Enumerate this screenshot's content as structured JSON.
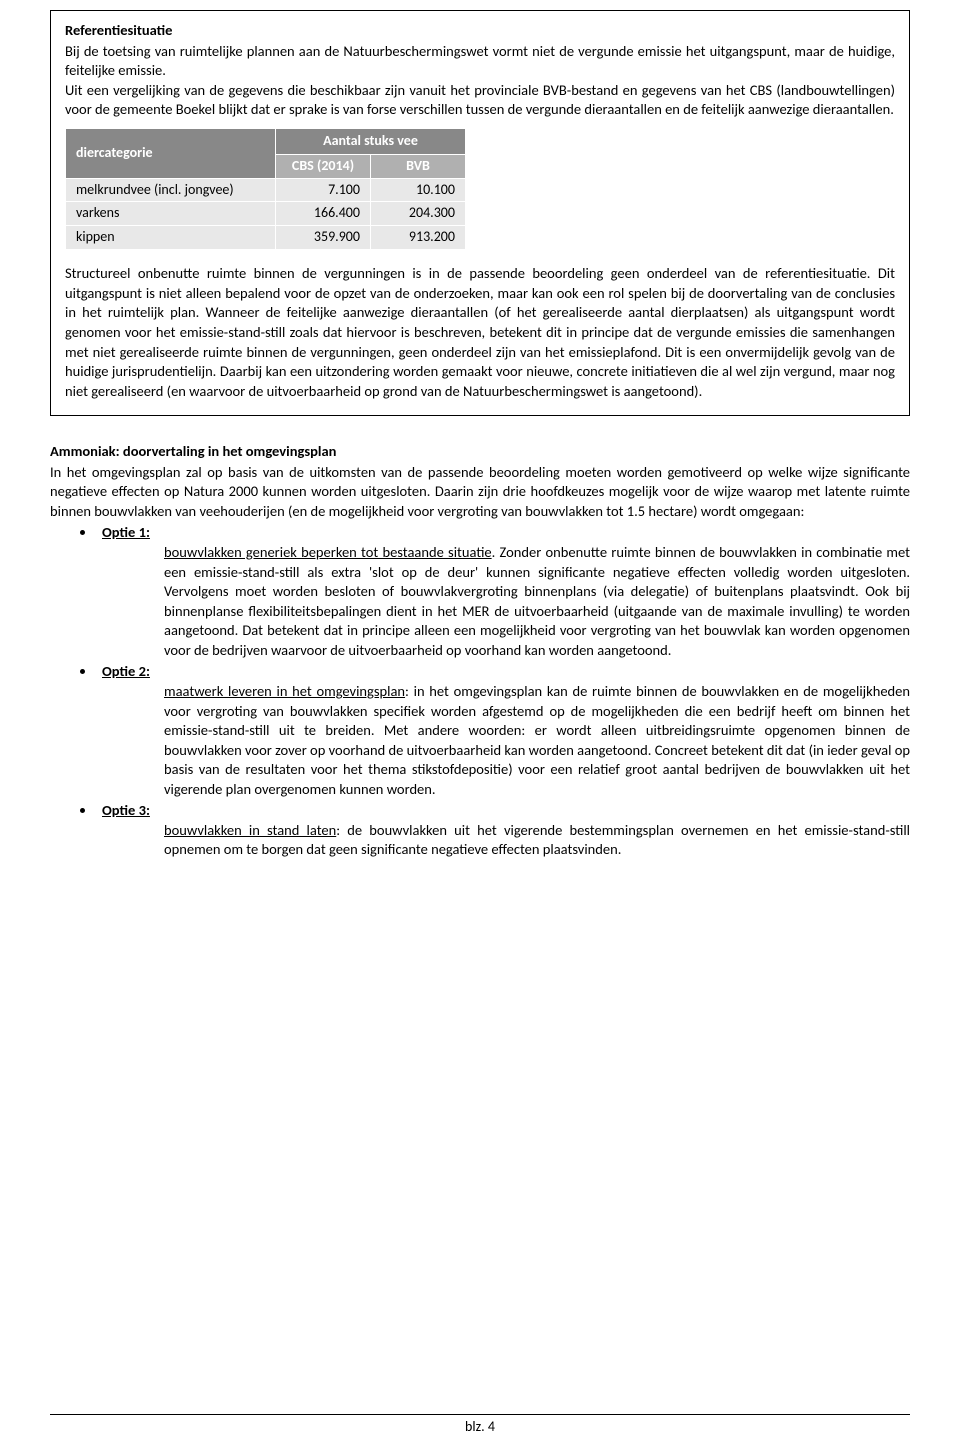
{
  "box": {
    "heading": "Referentiesituatie",
    "intro": "Bij de toetsing van ruimtelijke plannen aan de Natuurbeschermingswet vormt niet de vergunde emissie het uitgangspunt, maar de huidige, feitelijke emissie.",
    "para2": "Uit een vergelijking van de gegevens die beschikbaar zijn vanuit het provinciale BVB-bestand en gegevens van het CBS (landbouwtellingen) voor de gemeente Boekel blijkt dat er sprake is van forse verschillen tussen de vergunde dieraantallen en de feitelijk aanwezige dieraantallen.",
    "table": {
      "col_category": "diercategorie",
      "col_aantal": "Aantal stuks vee",
      "sub_cbs": "CBS (2014)",
      "sub_bvb": "BVB",
      "rows": [
        {
          "label": "melkrundvee (incl. jongvee)",
          "cbs": "7.100",
          "bvb": "10.100"
        },
        {
          "label": "varkens",
          "cbs": "166.400",
          "bvb": "204.300"
        },
        {
          "label": "kippen",
          "cbs": "359.900",
          "bvb": "913.200"
        }
      ]
    },
    "para3": "Structureel onbenutte ruimte binnen de vergunningen is in de passende beoordeling geen onderdeel van de referentiesituatie. Dit uitgangspunt is niet alleen bepalend voor de opzet van de onderzoeken, maar kan ook een rol spelen bij de doorvertaling van de conclusies in het ruimtelijk plan. Wanneer de feitelijke aanwezige dieraantallen (of het gerealiseerde aantal dierplaatsen) als uitgangspunt wordt genomen voor het emissie-stand-still zoals dat hiervoor is beschreven, betekent dit in principe dat de vergunde emissies die samenhangen met niet gerealiseerde ruimte binnen de vergunningen, geen onderdeel zijn van het emissieplafond. Dit is een onvermijdelijk gevolg van de huidige jurisprudentielijn. Daarbij kan een uitzondering worden gemaakt voor nieuwe, concrete  initiatieven die al wel zijn vergund, maar nog niet gerealiseerd (en waarvoor de uitvoerbaarheid op grond van de Natuurbeschermingswet is aangetoond)."
  },
  "section2": {
    "heading": "Ammoniak: doorvertaling in het omgevingsplan",
    "intro": "In het omgevingsplan zal op basis van de uitkomsten van de passende beoordeling moeten worden gemotiveerd op welke wijze significante negatieve effecten op Natura 2000 kunnen worden uitgesloten. Daarin zijn drie hoofdkeuzes mogelijk voor de wijze waarop met latente ruimte binnen bouwvlakken van veehouderijen (en de mogelijkheid voor vergroting van bouwvlakken tot 1.5 hectare) wordt omgegaan:",
    "options": [
      {
        "label": "Optie 1:",
        "lead": "bouwvlakken generiek beperken tot bestaande situatie",
        "rest": ". Zonder onbenutte ruimte binnen de bouwvlakken in combinatie met een emissie-stand-still als extra 'slot op de deur' kunnen significante negatieve effecten volledig worden uitgesloten. Vervolgens moet worden besloten of bouwvlakvergroting binnenplans (via delegatie) of buitenplans plaatsvindt. Ook bij binnenplanse flexibiliteitsbepalingen dient in het MER de uitvoerbaarheid (uitgaande van de maximale invulling) te worden aangetoond. Dat betekent dat in principe alleen een mogelijkheid voor vergroting van het bouwvlak kan worden opgenomen voor de bedrijven waarvoor de uitvoerbaarheid op voorhand kan worden aangetoond."
      },
      {
        "label": "Optie 2:",
        "lead": "maatwerk leveren in het omgevingsplan",
        "rest": ": in het omgevingsplan kan de ruimte binnen de bouwvlakken en de mogelijkheden voor vergroting van bouwvlakken specifiek worden afgestemd op de mogelijkheden die een bedrijf heeft om binnen het emissie-stand-still uit te breiden. Met andere woorden: er wordt alleen uitbreidingsruimte opgenomen binnen de bouwvlakken voor zover op voorhand de uitvoerbaarheid kan worden aangetoond. Concreet betekent dit dat (in ieder geval op basis van de resultaten voor het thema stikstofdepositie) voor een relatief groot aantal bedrijven de bouwvlakken uit het vigerende plan overgenomen kunnen worden."
      },
      {
        "label": "Optie 3:",
        "lead": "bouwvlakken in stand laten",
        "rest": ": de bouwvlakken uit het vigerende bestemmingsplan overnemen en het emissie-stand-still opnemen om te borgen dat geen significante negatieve effecten plaatsvinden."
      }
    ]
  },
  "footer": "blz. 4"
}
